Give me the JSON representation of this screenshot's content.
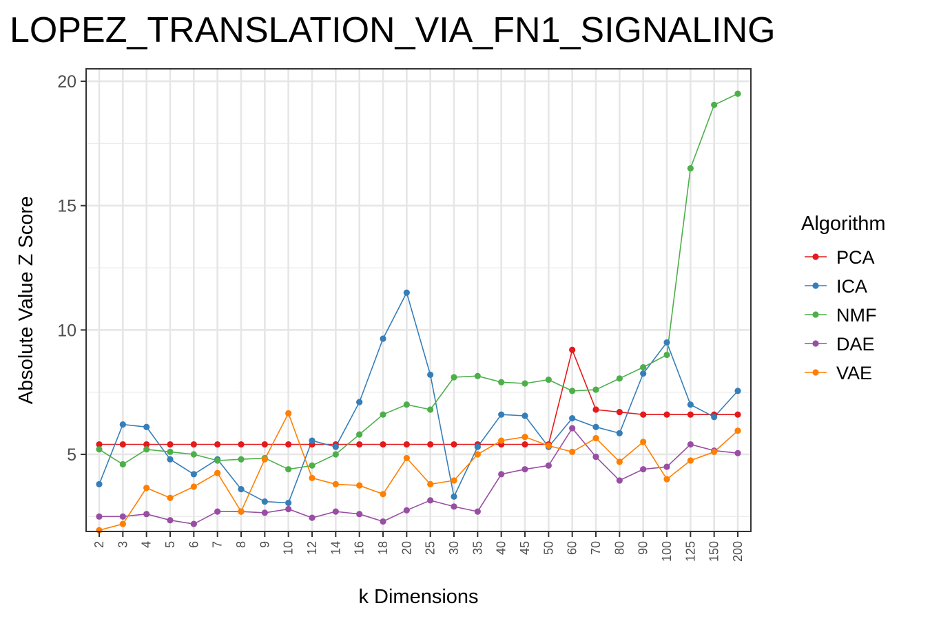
{
  "chart_data": {
    "type": "line",
    "title": "LOPEZ_TRANSLATION_VIA_FN1_SIGNALING",
    "xlabel": "k Dimensions",
    "ylabel": "Absolute Value Z Score",
    "legend_title": "Algorithm",
    "legend_position": "right",
    "grid": true,
    "ylim": [
      1.9,
      20.5
    ],
    "y_ticks": [
      5,
      10,
      15,
      20
    ],
    "categories": [
      "2",
      "3",
      "4",
      "5",
      "6",
      "7",
      "8",
      "9",
      "10",
      "12",
      "14",
      "16",
      "18",
      "20",
      "25",
      "30",
      "35",
      "40",
      "45",
      "50",
      "60",
      "70",
      "80",
      "90",
      "100",
      "125",
      "150",
      "200"
    ],
    "series": [
      {
        "name": "PCA",
        "color": "#E41A1C",
        "values": [
          5.4,
          5.4,
          5.4,
          5.4,
          5.4,
          5.4,
          5.4,
          5.4,
          5.4,
          5.4,
          5.4,
          5.4,
          5.4,
          5.4,
          5.4,
          5.4,
          5.4,
          5.4,
          5.4,
          5.4,
          9.2,
          6.8,
          6.7,
          6.6,
          6.6,
          6.6,
          6.6,
          6.6
        ]
      },
      {
        "name": "ICA",
        "color": "#377EB8",
        "values": [
          3.8,
          6.2,
          6.1,
          4.8,
          4.2,
          4.8,
          3.6,
          3.1,
          3.05,
          5.55,
          5.3,
          7.1,
          9.65,
          11.5,
          8.2,
          3.3,
          5.3,
          6.6,
          6.55,
          5.3,
          6.45,
          6.1,
          5.85,
          8.25,
          9.5,
          7.0,
          6.5,
          7.55
        ]
      },
      {
        "name": "NMF",
        "color": "#4DAF4A",
        "values": [
          5.2,
          4.6,
          5.2,
          5.1,
          5.0,
          4.75,
          4.8,
          4.85,
          4.4,
          4.55,
          5.0,
          5.8,
          6.6,
          7.0,
          6.8,
          8.1,
          8.15,
          7.9,
          7.85,
          8.0,
          7.55,
          7.6,
          8.05,
          8.5,
          9.0,
          16.5,
          19.05,
          19.5
        ]
      },
      {
        "name": "DAE",
        "color": "#984EA3",
        "values": [
          2.5,
          2.5,
          2.6,
          2.35,
          2.2,
          2.7,
          2.7,
          2.65,
          2.8,
          2.45,
          2.7,
          2.6,
          2.3,
          2.75,
          3.15,
          2.9,
          2.7,
          4.2,
          4.4,
          4.55,
          6.05,
          4.9,
          3.95,
          4.4,
          4.5,
          5.4,
          5.15,
          5.05
        ]
      },
      {
        "name": "VAE",
        "color": "#FF7F00",
        "values": [
          1.95,
          2.2,
          3.65,
          3.25,
          3.7,
          4.25,
          2.7,
          4.8,
          6.65,
          4.05,
          3.8,
          3.75,
          3.4,
          4.85,
          3.8,
          3.95,
          5.0,
          5.55,
          5.7,
          5.35,
          5.1,
          5.65,
          4.7,
          5.5,
          4.0,
          4.75,
          5.1,
          5.95
        ]
      }
    ]
  }
}
